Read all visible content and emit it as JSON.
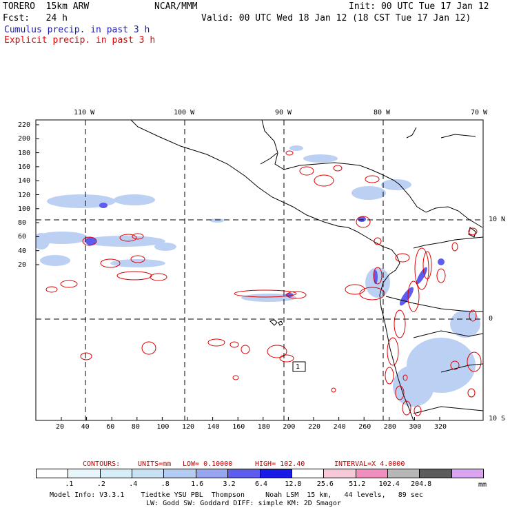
{
  "header": {
    "model": "TORERO  15km ARW",
    "org": "NCAR/MMM",
    "init": "Init: 00 UTC Tue 17 Jan 12",
    "fcst": "Fcst:   24 h",
    "valid": "Valid: 00 UTC Wed 18 Jan 12 (18 CST Tue 17 Jan 12)",
    "field1": "Cumulus precip. in past 3 h",
    "field2": "Explicit precip. in past 3 h"
  },
  "colors": {
    "field1": "#1a1aa8",
    "field2": "#e00000",
    "contour_info": "#c00000"
  },
  "lon_labels": [
    "110 W",
    "100 W",
    "90 W",
    "80 W",
    "70 W"
  ],
  "lat_labels_right": [
    "10 N",
    "0",
    "10 S"
  ],
  "y_ticks": [
    "220",
    "200",
    "180",
    "160",
    "140",
    "120",
    "100",
    "80",
    "60",
    "40",
    "20"
  ],
  "x_ticks": [
    "20",
    "40",
    "60",
    "80",
    "100",
    "120",
    "140",
    "160",
    "180",
    "200",
    "220",
    "240",
    "260",
    "280",
    "300",
    "320"
  ],
  "contour_info": {
    "contours": "CONTOURS:",
    "units": "UNITS=mm",
    "low": "LOW= 0.10000",
    "high": "HIGH= 102.40",
    "interval": "INTERVAL=X 4.0000"
  },
  "legend": {
    "colors": [
      "#ffffff",
      "#e8f6fb",
      "#d6eef7",
      "#c8e2f3",
      "#b4ccf2",
      "#98a6ef",
      "#5d5cef",
      "#1a1ae6",
      "#ffffff",
      "#f7c9d8",
      "#f08fbd",
      "#b7b7b7",
      "#5c5c5c",
      "#dba3f0"
    ],
    "labels": [
      ".1",
      ".2",
      ".4",
      ".8",
      "1.6",
      "3.2",
      "6.4",
      "12.8",
      "25.6",
      "51.2",
      "102.4",
      "204.8"
    ],
    "unit": "mm"
  },
  "max_label": "1",
  "footer": {
    "line1": "Model Info: V3.3.1    Tiedtke YSU PBL  Thompson     Noah LSM  15 km,   44 levels,   89 sec",
    "line2": "LW: Godd SW: Goddard DIFF: simple KM: 2D Smagor"
  }
}
